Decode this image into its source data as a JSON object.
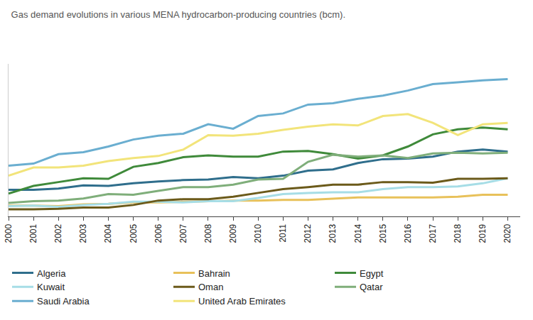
{
  "chart_data": {
    "type": "line",
    "title": "Gas demand evolutions in various MENA hydrocarbon-producing countries (bcm).",
    "x": [
      2000,
      2001,
      2002,
      2003,
      2004,
      2005,
      2006,
      2007,
      2008,
      2009,
      2010,
      2011,
      2012,
      2013,
      2014,
      2015,
      2016,
      2017,
      2018,
      2019,
      2020
    ],
    "xlim": [
      2000,
      2020.5
    ],
    "xticks": [
      2000,
      2001,
      2002,
      2003,
      2004,
      2005,
      2006,
      2007,
      2008,
      2009,
      2010,
      2011,
      2012,
      2013,
      2014,
      2015,
      2016,
      2017,
      2018,
      2019,
      2020
    ],
    "ylim": [
      5,
      105
    ],
    "tick_labels": "x",
    "grid": false,
    "legend": "bottom",
    "series": [
      {
        "name": "Algeria",
        "color": "#2f6e8c",
        "values": [
          22.5,
          22.5,
          23.3,
          25.4,
          25.0,
          26.7,
          27.9,
          28.8,
          29.2,
          30.8,
          30.0,
          31.7,
          35.0,
          35.8,
          40.0,
          42.5,
          42.9,
          44.2,
          47.5,
          48.8,
          47.5
        ]
      },
      {
        "name": "Bahrain",
        "color": "#e8c15a",
        "values": [
          12.1,
          12.1,
          11.7,
          12.9,
          13.3,
          14.2,
          14.2,
          14.6,
          15.0,
          15.4,
          15.4,
          15.8,
          15.8,
          16.7,
          17.5,
          17.5,
          17.5,
          17.5,
          17.9,
          19.2,
          19.2
        ]
      },
      {
        "name": "Egypt",
        "color": "#3f8a3a",
        "values": [
          20.0,
          25.0,
          27.5,
          30.0,
          29.6,
          37.5,
          40.0,
          43.8,
          45.0,
          44.2,
          44.2,
          47.5,
          47.9,
          45.8,
          42.9,
          45.0,
          50.8,
          58.8,
          62.1,
          63.3,
          62.1
        ]
      },
      {
        "name": "Kuwait",
        "color": "#a6dde6",
        "values": [
          11.7,
          12.1,
          11.3,
          12.5,
          13.3,
          14.6,
          14.6,
          14.2,
          15.0,
          15.0,
          17.1,
          19.6,
          20.4,
          20.8,
          20.8,
          22.9,
          24.2,
          24.2,
          24.6,
          26.7,
          30.0
        ]
      },
      {
        "name": "Oman",
        "color": "#6b5a1a",
        "values": [
          9.6,
          9.6,
          10.0,
          10.8,
          10.8,
          12.5,
          15.4,
          16.3,
          16.3,
          17.9,
          20.4,
          22.9,
          24.2,
          25.8,
          25.8,
          27.5,
          27.5,
          27.1,
          29.6,
          29.6,
          30.0
        ]
      },
      {
        "name": "Qatar",
        "color": "#7fae7a",
        "values": [
          13.8,
          15.0,
          15.4,
          16.7,
          19.6,
          19.2,
          21.7,
          24.2,
          24.2,
          25.8,
          29.2,
          29.6,
          40.8,
          45.4,
          44.2,
          45.0,
          43.3,
          46.3,
          46.7,
          46.3,
          46.7
        ]
      },
      {
        "name": "Saudi Arabia",
        "color": "#6aaed0",
        "values": [
          38.3,
          39.6,
          45.8,
          47.1,
          50.8,
          55.4,
          57.9,
          59.2,
          65.4,
          62.5,
          70.8,
          72.5,
          78.3,
          79.2,
          82.1,
          84.2,
          87.5,
          91.7,
          92.9,
          94.2,
          95.0
        ]
      },
      {
        "name": "United Arab Emirates",
        "color": "#f2e47a",
        "values": [
          31.7,
          37.1,
          37.1,
          38.3,
          41.3,
          43.3,
          44.6,
          48.8,
          58.3,
          57.9,
          59.2,
          61.7,
          63.8,
          65.4,
          64.6,
          70.8,
          72.1,
          66.3,
          58.3,
          65.4,
          66.3
        ]
      }
    ]
  }
}
